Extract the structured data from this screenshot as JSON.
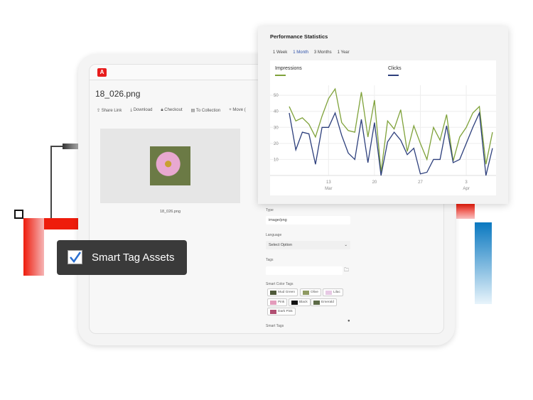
{
  "app": {
    "logo": "A",
    "file_title": "18_026.png",
    "actions": [
      {
        "icon": "share-icon",
        "label": "Share Link"
      },
      {
        "icon": "download-icon",
        "label": "Download"
      },
      {
        "icon": "lock-icon",
        "label": "Checkout"
      },
      {
        "icon": "collection-icon",
        "label": "To Collection"
      },
      {
        "icon": "plus-icon",
        "label": "Move ("
      }
    ],
    "caption": "18_026.png"
  },
  "metadata": {
    "type_label": "Type",
    "type_value": "image/png",
    "language_label": "Language",
    "language_placeholder": "Select Option",
    "tags_label": "Tags",
    "smart_color_label": "Smart Color Tags",
    "smart_tags_label": "Smart Tags",
    "color_tags": [
      {
        "name": "Mud Green",
        "color": "#4f5a3a"
      },
      {
        "name": "Olive",
        "color": "#8f9a62"
      },
      {
        "name": "Lilac",
        "color": "#e7c9e4"
      },
      {
        "name": "Pink",
        "color": "#e39cbc"
      },
      {
        "name": "Black",
        "color": "#111111"
      },
      {
        "name": "Emerald",
        "color": "#5d6b47"
      },
      {
        "name": "Dark Pink",
        "color": "#b04f72"
      }
    ]
  },
  "tooltip": {
    "label": "Smart Tag Assets",
    "checked": true
  },
  "stats": {
    "title": "Performance Statistics",
    "tabs": [
      "1 Week",
      "1 Month",
      "3 Months",
      "1 Year"
    ],
    "active_tab": "1 Month"
  },
  "chart_data": {
    "type": "line",
    "x_start": "2024-03-07",
    "x": [
      "Mar 7",
      "Mar 8",
      "Mar 9",
      "Mar 10",
      "Mar 11",
      "Mar 12",
      "Mar 13",
      "Mar 14",
      "Mar 15",
      "Mar 16",
      "Mar 17",
      "Mar 18",
      "Mar 19",
      "Mar 20",
      "Mar 21",
      "Mar 22",
      "Mar 23",
      "Mar 24",
      "Mar 25",
      "Mar 26",
      "Mar 27",
      "Mar 28",
      "Mar 29",
      "Mar 30",
      "Mar 31",
      "Apr 1",
      "Apr 2",
      "Apr 3",
      "Apr 4",
      "Apr 5",
      "Apr 6",
      "Apr 7"
    ],
    "x_ticks": [
      {
        "label": "13",
        "sub": "Mar",
        "index": 6
      },
      {
        "label": "20",
        "sub": "",
        "index": 13
      },
      {
        "label": "27",
        "sub": "",
        "index": 20
      },
      {
        "label": "3",
        "sub": "Apr",
        "index": 27
      }
    ],
    "y_ticks": [
      10,
      20,
      30,
      40,
      50
    ],
    "ylim": [
      0,
      56
    ],
    "grid": true,
    "legend_placement": "top",
    "series": [
      {
        "name": "Impressions",
        "color": "#7fa23a",
        "values": [
          43,
          34,
          36,
          32,
          24,
          37,
          48,
          54,
          33,
          28,
          27,
          52,
          24,
          47,
          2,
          34,
          29,
          41,
          15,
          31,
          20,
          10,
          30,
          22,
          38,
          9,
          24,
          30,
          39,
          43,
          7,
          27
        ]
      },
      {
        "name": "Clicks",
        "color": "#2d3f7c",
        "values": [
          39,
          16,
          27,
          26,
          7,
          30,
          30,
          39,
          25,
          14,
          10,
          35,
          8,
          33,
          0,
          21,
          27,
          22,
          13,
          17,
          1,
          2,
          10,
          10,
          31,
          8,
          10,
          20,
          30,
          39,
          0,
          17
        ]
      }
    ]
  },
  "colors": {
    "red": "#ee1c0c",
    "blue": "#0a78c0"
  }
}
